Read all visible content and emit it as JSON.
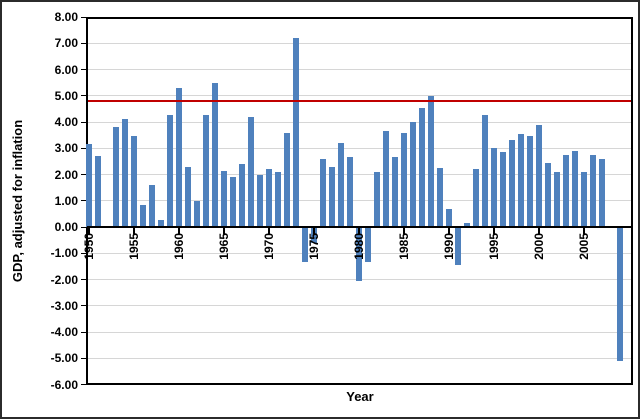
{
  "chart_data": {
    "type": "bar",
    "title": "",
    "xlabel": "Year",
    "ylabel": "GDP, adjusted for inflation",
    "years": [
      1950,
      1951,
      1952,
      1953,
      1954,
      1955,
      1956,
      1957,
      1958,
      1959,
      1960,
      1961,
      1962,
      1963,
      1964,
      1965,
      1966,
      1967,
      1968,
      1969,
      1970,
      1971,
      1972,
      1973,
      1974,
      1975,
      1976,
      1977,
      1978,
      1979,
      1980,
      1981,
      1982,
      1983,
      1984,
      1985,
      1986,
      1987,
      1988,
      1989,
      1990,
      1991,
      1992,
      1993,
      1994,
      1995,
      1996,
      1997,
      1998,
      1999,
      2000,
      2001,
      2002,
      2003,
      2004,
      2005,
      2006,
      2007,
      2008,
      2009
    ],
    "values": [
      3.15,
      2.7,
      0.0,
      3.8,
      4.1,
      3.45,
      0.85,
      1.6,
      0.25,
      4.25,
      5.3,
      2.3,
      1.0,
      4.25,
      5.5,
      2.15,
      1.9,
      2.4,
      4.2,
      2.0,
      2.2,
      2.1,
      3.6,
      7.2,
      -1.35,
      -0.6,
      2.6,
      2.3,
      3.2,
      2.65,
      -2.05,
      -1.35,
      2.1,
      3.65,
      2.65,
      3.6,
      4.0,
      4.55,
      5.0,
      2.25,
      0.7,
      -1.45,
      0.15,
      2.2,
      4.25,
      3.0,
      2.85,
      3.3,
      3.55,
      3.45,
      3.9,
      2.45,
      2.1,
      2.75,
      2.9,
      2.1,
      2.75,
      2.6,
      0.0,
      -5.1
    ],
    "ylim": [
      -6,
      8
    ],
    "ytick_step": 1,
    "ytick_labels": [
      "8.00",
      "7.00",
      "6.00",
      "5.00",
      "4.00",
      "3.00",
      "2.00",
      "1.00",
      "0.00",
      "-1.00",
      "-2.00",
      "-3.00",
      "-4.00",
      "-5.00",
      "-6.00"
    ],
    "xtick_labels": [
      "1950",
      "1955",
      "1960",
      "1965",
      "1970",
      "1975",
      "1980",
      "1985",
      "1990",
      "1995",
      "2000",
      "2005"
    ],
    "reference_line": {
      "value": 4.8,
      "color": "#C00000"
    },
    "bar_color": "#4F81BD",
    "gridline_color": "#d6d6d6",
    "grid": "horizontal",
    "legend": "none",
    "plot_background": "#ffffff"
  }
}
